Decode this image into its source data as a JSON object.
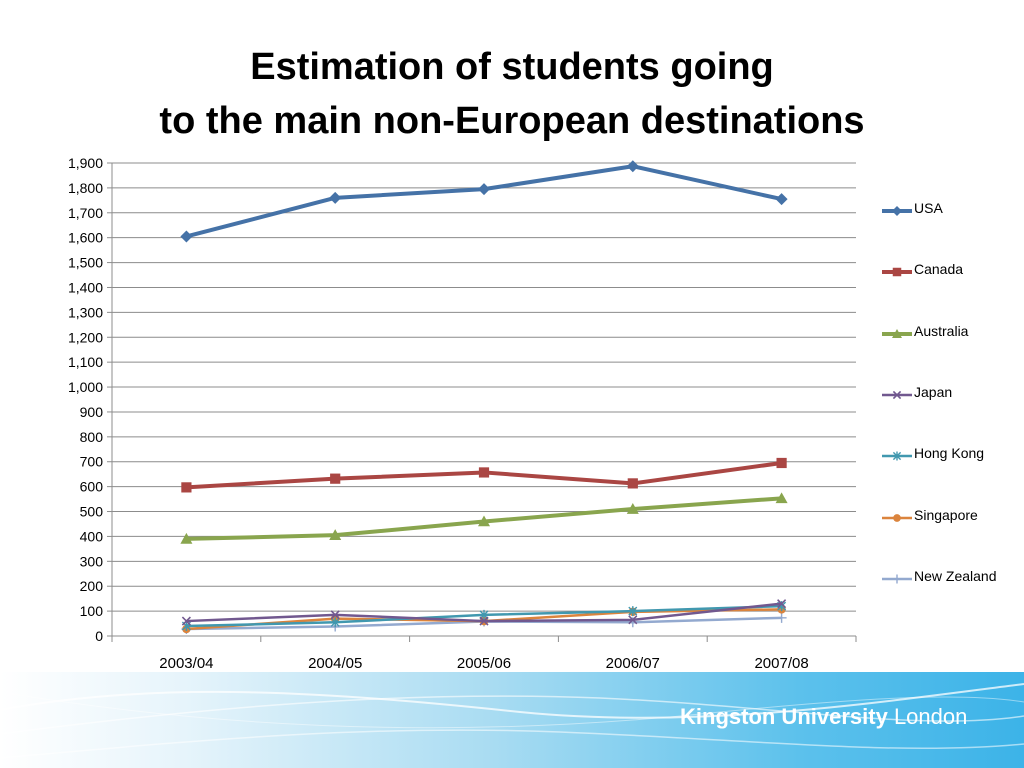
{
  "title_lines": [
    "Estimation of students going",
    "to the main non-European destinations"
  ],
  "brand": {
    "name": "Kingston University",
    "city": "London"
  },
  "chart_data": {
    "type": "line",
    "categories": [
      "2003/04",
      "2004/05",
      "2005/06",
      "2006/07",
      "2007/08"
    ],
    "ylim": [
      0,
      1900
    ],
    "yticks": [
      "0",
      "100",
      "200",
      "300",
      "400",
      "500",
      "600",
      "700",
      "800",
      "900",
      "1,000",
      "1,100",
      "1,200",
      "1,300",
      "1,400",
      "1,500",
      "1,600",
      "1,700",
      "1,800",
      "1,900"
    ],
    "grid": true,
    "legend_position": "right",
    "series": [
      {
        "name": "USA",
        "color": "#4572a7",
        "marker": "diamond",
        "values": [
          1605,
          1760,
          1795,
          1887,
          1755
        ]
      },
      {
        "name": "Canada",
        "color": "#aa4643",
        "marker": "square",
        "values": [
          597,
          632,
          657,
          613,
          695
        ]
      },
      {
        "name": "Australia",
        "color": "#89a54e",
        "marker": "triangle",
        "values": [
          390,
          405,
          460,
          510,
          553
        ]
      },
      {
        "name": "Japan",
        "color": "#71588f",
        "marker": "x",
        "values": [
          60,
          85,
          60,
          65,
          130
        ]
      },
      {
        "name": "Hong Kong",
        "color": "#4198af",
        "marker": "star",
        "values": [
          40,
          55,
          85,
          100,
          120
        ]
      },
      {
        "name": "Singapore",
        "color": "#db843d",
        "marker": "circle",
        "values": [
          28,
          70,
          60,
          97,
          107
        ]
      },
      {
        "name": "New Zealand",
        "color": "#93a9cf",
        "marker": "plus",
        "values": [
          28,
          38,
          58,
          55,
          73
        ]
      }
    ]
  }
}
